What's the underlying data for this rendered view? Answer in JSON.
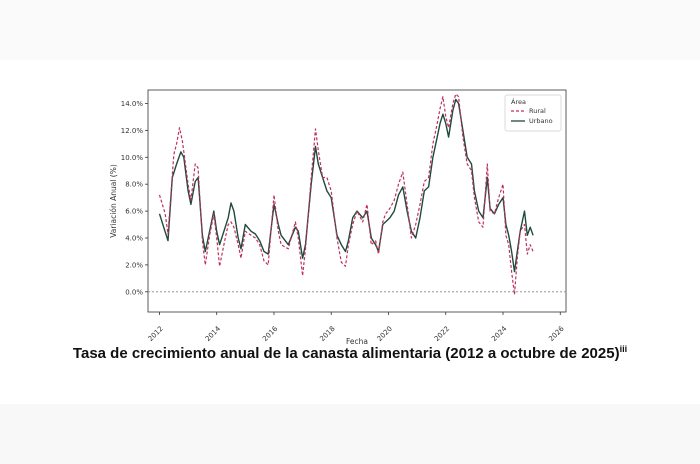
{
  "caption": {
    "text": "Tasa de crecimiento anual de la canasta alimentaria  (2012 a octubre de 2025)",
    "superscript": "iii"
  },
  "chart_data": {
    "type": "line",
    "xlabel": "Fecha",
    "ylabel": "Variación Anual (%)",
    "x_ticks": [
      "2012",
      "2014",
      "2016",
      "2018",
      "2020",
      "2022",
      "2024",
      "2026"
    ],
    "y_ticks": [
      "0.0%",
      "2.0%",
      "4.0%",
      "6.0%",
      "8.0%",
      "10.0%",
      "12.0%",
      "14.0%"
    ],
    "xlim": [
      2011.6,
      2026.2
    ],
    "ylim": [
      -1.5,
      15.0
    ],
    "grid": false,
    "reference_line": 0.0,
    "legend": {
      "title": "Área",
      "placement": "top-right"
    },
    "colors": {
      "rural": "#c0305a",
      "urbano": "#1f4a3c",
      "zero_line": "#888888"
    },
    "series": [
      {
        "name": "Rural",
        "style": "dashed",
        "points": [
          [
            2012.0,
            7.2
          ],
          [
            2012.2,
            5.8
          ],
          [
            2012.3,
            4.3
          ],
          [
            2012.5,
            10.2
          ],
          [
            2012.6,
            11.0
          ],
          [
            2012.7,
            12.2
          ],
          [
            2012.8,
            11.2
          ],
          [
            2013.0,
            8.0
          ],
          [
            2013.1,
            6.8
          ],
          [
            2013.25,
            9.5
          ],
          [
            2013.35,
            9.2
          ],
          [
            2013.5,
            3.8
          ],
          [
            2013.6,
            2.0
          ],
          [
            2013.75,
            4.2
          ],
          [
            2013.9,
            5.8
          ],
          [
            2014.0,
            4.0
          ],
          [
            2014.1,
            1.9
          ],
          [
            2014.25,
            3.5
          ],
          [
            2014.4,
            5.0
          ],
          [
            2014.5,
            5.2
          ],
          [
            2014.6,
            4.8
          ],
          [
            2014.75,
            3.5
          ],
          [
            2014.85,
            2.5
          ],
          [
            2015.0,
            4.5
          ],
          [
            2015.2,
            4.2
          ],
          [
            2015.35,
            4.0
          ],
          [
            2015.5,
            3.5
          ],
          [
            2015.65,
            2.3
          ],
          [
            2015.8,
            2.0
          ],
          [
            2016.0,
            7.2
          ],
          [
            2016.15,
            4.5
          ],
          [
            2016.25,
            3.5
          ],
          [
            2016.5,
            3.2
          ],
          [
            2016.75,
            5.2
          ],
          [
            2016.85,
            4.0
          ],
          [
            2017.0,
            1.2
          ],
          [
            2017.1,
            3.2
          ],
          [
            2017.3,
            8.5
          ],
          [
            2017.45,
            12.1
          ],
          [
            2017.55,
            10.5
          ],
          [
            2017.7,
            8.5
          ],
          [
            2017.85,
            8.5
          ],
          [
            2018.0,
            7.5
          ],
          [
            2018.2,
            4.0
          ],
          [
            2018.35,
            2.2
          ],
          [
            2018.5,
            1.9
          ],
          [
            2018.6,
            3.5
          ],
          [
            2018.75,
            5.0
          ],
          [
            2018.9,
            6.0
          ],
          [
            2019.1,
            5.2
          ],
          [
            2019.25,
            6.5
          ],
          [
            2019.4,
            3.5
          ],
          [
            2019.55,
            3.8
          ],
          [
            2019.65,
            2.8
          ],
          [
            2019.8,
            5.2
          ],
          [
            2019.9,
            5.8
          ],
          [
            2020.05,
            6.2
          ],
          [
            2020.2,
            6.8
          ],
          [
            2020.35,
            8.0
          ],
          [
            2020.5,
            8.9
          ],
          [
            2020.65,
            6.5
          ],
          [
            2020.8,
            4.0
          ],
          [
            2020.95,
            5.0
          ],
          [
            2021.1,
            6.5
          ],
          [
            2021.25,
            8.2
          ],
          [
            2021.4,
            8.5
          ],
          [
            2021.55,
            11.0
          ],
          [
            2021.7,
            12.5
          ],
          [
            2021.8,
            13.6
          ],
          [
            2021.9,
            14.5
          ],
          [
            2022.0,
            13.0
          ],
          [
            2022.1,
            12.2
          ],
          [
            2022.25,
            14.0
          ],
          [
            2022.35,
            14.7
          ],
          [
            2022.45,
            14.5
          ],
          [
            2022.6,
            11.5
          ],
          [
            2022.75,
            9.5
          ],
          [
            2022.9,
            9.0
          ],
          [
            2023.0,
            7.0
          ],
          [
            2023.15,
            5.2
          ],
          [
            2023.3,
            4.8
          ],
          [
            2023.45,
            9.5
          ],
          [
            2023.55,
            6.0
          ],
          [
            2023.7,
            5.8
          ],
          [
            2023.85,
            7.0
          ],
          [
            2024.0,
            8.0
          ],
          [
            2024.1,
            4.2
          ],
          [
            2024.2,
            3.5
          ],
          [
            2024.3,
            1.5
          ],
          [
            2024.4,
            -0.2
          ],
          [
            2024.5,
            2.5
          ],
          [
            2024.6,
            4.5
          ],
          [
            2024.75,
            5.0
          ],
          [
            2024.85,
            2.8
          ],
          [
            2024.95,
            3.5
          ],
          [
            2025.05,
            3.0
          ]
        ]
      },
      {
        "name": "Urbano",
        "style": "solid",
        "points": [
          [
            2012.0,
            5.8
          ],
          [
            2012.15,
            4.8
          ],
          [
            2012.3,
            3.8
          ],
          [
            2012.45,
            8.5
          ],
          [
            2012.6,
            9.5
          ],
          [
            2012.75,
            10.4
          ],
          [
            2012.85,
            10.0
          ],
          [
            2013.0,
            7.5
          ],
          [
            2013.1,
            6.5
          ],
          [
            2013.25,
            8.2
          ],
          [
            2013.35,
            8.5
          ],
          [
            2013.5,
            4.2
          ],
          [
            2013.6,
            3.0
          ],
          [
            2013.75,
            4.5
          ],
          [
            2013.9,
            6.0
          ],
          [
            2014.0,
            4.5
          ],
          [
            2014.1,
            3.5
          ],
          [
            2014.25,
            4.5
          ],
          [
            2014.4,
            5.5
          ],
          [
            2014.5,
            6.6
          ],
          [
            2014.6,
            6.0
          ],
          [
            2014.75,
            4.0
          ],
          [
            2014.85,
            3.2
          ],
          [
            2015.0,
            5.0
          ],
          [
            2015.2,
            4.5
          ],
          [
            2015.35,
            4.3
          ],
          [
            2015.5,
            3.8
          ],
          [
            2015.65,
            3.0
          ],
          [
            2015.8,
            2.8
          ],
          [
            2016.0,
            6.5
          ],
          [
            2016.15,
            5.0
          ],
          [
            2016.25,
            4.2
          ],
          [
            2016.5,
            3.5
          ],
          [
            2016.75,
            4.8
          ],
          [
            2016.85,
            4.5
          ],
          [
            2017.0,
            2.5
          ],
          [
            2017.1,
            3.5
          ],
          [
            2017.3,
            8.0
          ],
          [
            2017.45,
            10.8
          ],
          [
            2017.55,
            9.5
          ],
          [
            2017.7,
            8.5
          ],
          [
            2017.85,
            7.5
          ],
          [
            2018.0,
            7.0
          ],
          [
            2018.2,
            4.2
          ],
          [
            2018.35,
            3.5
          ],
          [
            2018.5,
            3.0
          ],
          [
            2018.6,
            3.8
          ],
          [
            2018.75,
            5.5
          ],
          [
            2018.9,
            6.0
          ],
          [
            2019.1,
            5.5
          ],
          [
            2019.25,
            6.0
          ],
          [
            2019.4,
            4.0
          ],
          [
            2019.55,
            3.5
          ],
          [
            2019.65,
            3.0
          ],
          [
            2019.8,
            5.0
          ],
          [
            2019.9,
            5.2
          ],
          [
            2020.05,
            5.5
          ],
          [
            2020.2,
            6.0
          ],
          [
            2020.35,
            7.2
          ],
          [
            2020.5,
            7.8
          ],
          [
            2020.65,
            6.0
          ],
          [
            2020.8,
            4.5
          ],
          [
            2020.95,
            4.0
          ],
          [
            2021.1,
            5.5
          ],
          [
            2021.25,
            7.5
          ],
          [
            2021.4,
            7.8
          ],
          [
            2021.55,
            10.0
          ],
          [
            2021.7,
            11.5
          ],
          [
            2021.8,
            12.5
          ],
          [
            2021.9,
            13.2
          ],
          [
            2022.0,
            12.5
          ],
          [
            2022.1,
            11.5
          ],
          [
            2022.25,
            13.5
          ],
          [
            2022.35,
            14.3
          ],
          [
            2022.45,
            14.0
          ],
          [
            2022.6,
            12.0
          ],
          [
            2022.75,
            10.0
          ],
          [
            2022.9,
            9.5
          ],
          [
            2023.0,
            7.5
          ],
          [
            2023.15,
            6.0
          ],
          [
            2023.3,
            5.5
          ],
          [
            2023.45,
            8.5
          ],
          [
            2023.55,
            6.2
          ],
          [
            2023.7,
            5.8
          ],
          [
            2023.85,
            6.5
          ],
          [
            2024.0,
            7.0
          ],
          [
            2024.1,
            5.0
          ],
          [
            2024.2,
            4.2
          ],
          [
            2024.3,
            3.0
          ],
          [
            2024.4,
            1.5
          ],
          [
            2024.5,
            3.0
          ],
          [
            2024.6,
            4.5
          ],
          [
            2024.75,
            6.0
          ],
          [
            2024.85,
            4.2
          ],
          [
            2024.95,
            4.8
          ],
          [
            2025.05,
            4.2
          ]
        ]
      }
    ]
  }
}
